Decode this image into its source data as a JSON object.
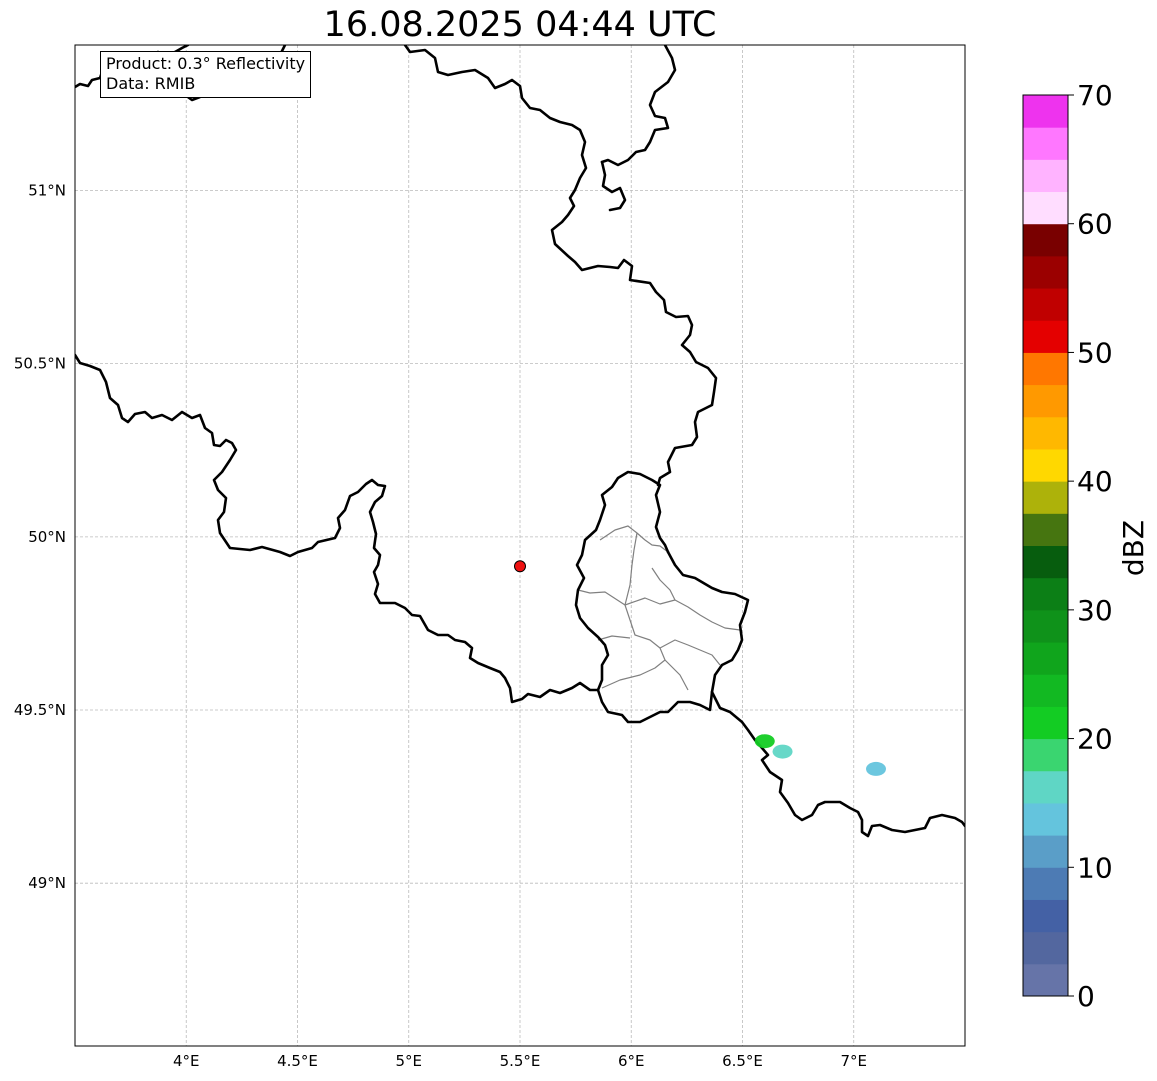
{
  "title": "16.08.2025 04:44 UTC",
  "info": {
    "product": "Product: 0.3° Reflectivity",
    "data": "Data: RMIB"
  },
  "map": {
    "extent": {
      "lon_min": 3.5,
      "lon_max": 7.5,
      "lat_min": 48.53,
      "lat_max": 51.42
    },
    "lon_ticks": [
      {
        "value": 4.0,
        "label": "4°E"
      },
      {
        "value": 4.5,
        "label": "4.5°E"
      },
      {
        "value": 5.0,
        "label": "5°E"
      },
      {
        "value": 5.5,
        "label": "5.5°E"
      },
      {
        "value": 6.0,
        "label": "6°E"
      },
      {
        "value": 6.5,
        "label": "6.5°E"
      },
      {
        "value": 7.0,
        "label": "7°E"
      }
    ],
    "lat_ticks": [
      {
        "value": 51.0,
        "label": "51°N"
      },
      {
        "value": 50.5,
        "label": "50.5°N"
      },
      {
        "value": 50.0,
        "label": "50°N"
      },
      {
        "value": 49.5,
        "label": "49.5°N"
      },
      {
        "value": 49.0,
        "label": "49°N"
      }
    ],
    "radar_site": {
      "lon": 5.5,
      "lat": 49.915,
      "color": "#ee1111"
    },
    "echoes": [
      {
        "lon": 6.6,
        "lat": 49.41,
        "dbz": 20
      },
      {
        "lon": 6.68,
        "lat": 49.38,
        "dbz": 15
      },
      {
        "lon": 7.1,
        "lat": 49.33,
        "dbz": 13
      }
    ]
  },
  "colorbar": {
    "label": "dBZ",
    "min": 0,
    "max": 70,
    "step": 2.5,
    "tick_values": [
      0,
      10,
      20,
      30,
      40,
      50,
      60,
      70
    ],
    "tick_labels": [
      "0",
      "10",
      "20",
      "30",
      "40",
      "50",
      "60",
      "70"
    ],
    "colors": [
      "#6674a8",
      "#53679f",
      "#4461a5",
      "#4d7bb4",
      "#5a9ec8",
      "#64c4dd",
      "#5fd6c5",
      "#3ad570",
      "#13cc23",
      "#12b922",
      "#10a51c",
      "#0f921a",
      "#0c7f16",
      "#075d0e",
      "#467510",
      "#adb20a",
      "#ffd800",
      "#ffb800",
      "#ff9900",
      "#ff7700",
      "#e40000",
      "#c00000",
      "#9b0000",
      "#790000",
      "#ffddff",
      "#ffb3ff",
      "#ff77ff",
      "#ee33ee"
    ]
  }
}
